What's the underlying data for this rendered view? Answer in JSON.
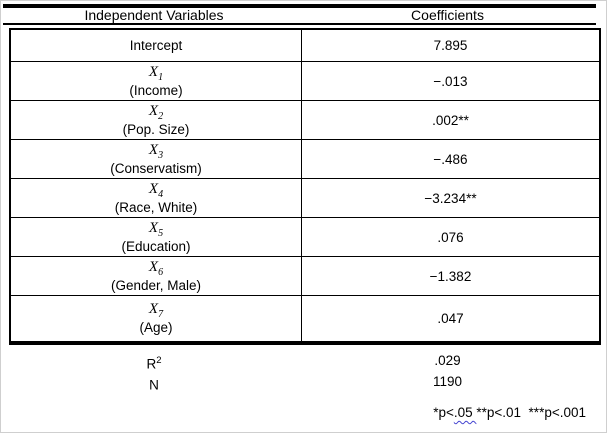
{
  "page": {
    "header": {
      "col1": "Independent Variables",
      "col2": "Coefficients"
    },
    "rows": [
      {
        "name": "Intercept",
        "coef": "7.895"
      },
      {
        "var": "X",
        "sub": "1",
        "label": "(Income)",
        "coef": "−.013"
      },
      {
        "var": "X",
        "sub": "2",
        "label": "(Pop. Size)",
        "coef": ".002**"
      },
      {
        "var": "X",
        "sub": "3",
        "label": "(Conservatism)",
        "coef": "−.486"
      },
      {
        "var": "X",
        "sub": "4",
        "label": "(Race, White)",
        "coef": "−3.234**"
      },
      {
        "var": "X",
        "sub": "5",
        "label": "(Education)",
        "coef": ".076"
      },
      {
        "var": "X",
        "sub": "6",
        "label": "(Gender, Male)",
        "coef": "−1.382"
      },
      {
        "var": "X",
        "sub": "7",
        "label": "(Age)",
        "coef": ".047"
      }
    ],
    "stats": [
      {
        "label": "R",
        "sup": "2",
        "value": ".029"
      },
      {
        "label": "N",
        "sup": "",
        "value": "1190"
      }
    ],
    "footnote": {
      "part1": "*p<",
      "wavy": ".05 ",
      "part2": "**p<.01  ***p<.001"
    },
    "colors": {
      "squiggle": "#4343d0",
      "rule": "#000000"
    }
  }
}
